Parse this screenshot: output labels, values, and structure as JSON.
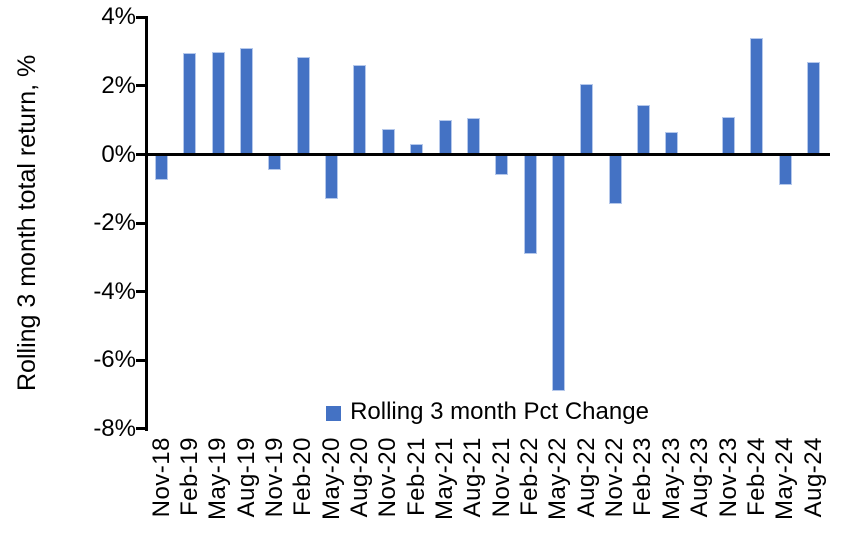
{
  "chart_data": {
    "type": "bar",
    "title": "",
    "xlabel": "",
    "ylabel": "Rolling 3 month total return, %",
    "ylim": [
      -8,
      4
    ],
    "yticks": [
      4,
      2,
      0,
      -2,
      -4,
      -6,
      -8
    ],
    "ytick_labels": [
      "4%",
      "2%",
      "0%",
      "-2%",
      "-4%",
      "-6%",
      "-8%"
    ],
    "grid": false,
    "legend_position": "bottom-center",
    "bar_color": "#4472C4",
    "bar_edge_color": "#b5c8eb",
    "axis_color": "#000000",
    "categories": [
      "Nov-18",
      "Feb-19",
      "May-19",
      "Aug-19",
      "Nov-19",
      "Feb-20",
      "May-20",
      "Aug-20",
      "Nov-20",
      "Feb-21",
      "May-21",
      "Aug-21",
      "Nov-21",
      "Feb-22",
      "May-22",
      "Aug-22",
      "Nov-22",
      "Feb-23",
      "May-23",
      "Aug-23",
      "Nov-23",
      "Feb-24",
      "May-24",
      "Aug-24"
    ],
    "series": [
      {
        "name": "Rolling 3 month Pct Change",
        "values": [
          -0.75,
          2.95,
          3.0,
          3.1,
          -0.45,
          2.85,
          -1.3,
          2.6,
          0.75,
          0.3,
          1.0,
          1.05,
          -0.6,
          -2.9,
          -6.9,
          2.05,
          -1.45,
          1.45,
          0.65,
          0.0,
          1.1,
          3.4,
          -0.9,
          2.7
        ]
      }
    ]
  }
}
